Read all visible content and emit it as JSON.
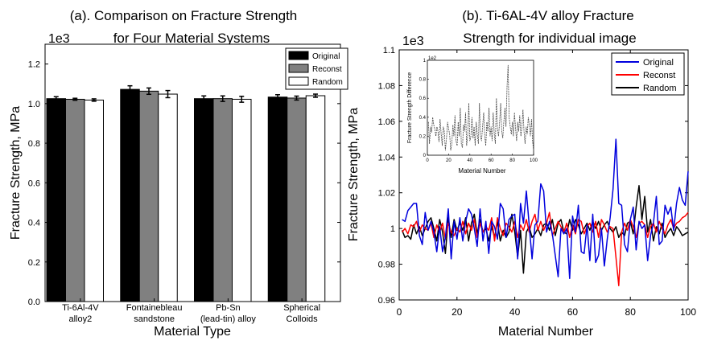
{
  "chart_data": [
    {
      "type": "bar",
      "title": "(a). Comparison  on Fracture Strength for Four Material Systems",
      "title_lines": [
        "(a). Comparison  on Fracture Strength",
        "for Four Material Systems"
      ],
      "scale_label": "1e3",
      "xlabel": "Material Type",
      "ylabel": "Fracture Strength, MPa",
      "ylim": [
        0,
        1.3
      ],
      "yticks": [
        0.0,
        0.2,
        0.4,
        0.6,
        0.8,
        1.0,
        1.2
      ],
      "ytick_labels": [
        "0.0",
        "0.2",
        "0.4",
        "0.6",
        "0.8",
        "1.0",
        "1.2"
      ],
      "categories": [
        "Ti-6Al-4V alloy2",
        "Fontainebleau sandstone",
        "Pb-Sn (lead-tin) alloy",
        "Spherical Colloids"
      ],
      "category_lines": [
        [
          "Ti-6Al-4V",
          "alloy2"
        ],
        [
          "Fontainebleau",
          "sandstone"
        ],
        [
          "Pb-Sn",
          "(lead-tin) alloy"
        ],
        [
          "Spherical",
          "Colloids"
        ]
      ],
      "legend_position": "top-right",
      "series": [
        {
          "name": "Original",
          "color": "#000000",
          "values": [
            1.025,
            1.072,
            1.025,
            1.033
          ],
          "errors": [
            0.01,
            0.018,
            0.014,
            0.012
          ]
        },
        {
          "name": "Reconst",
          "color": "#808080",
          "values": [
            1.022,
            1.063,
            1.025,
            1.028
          ],
          "errors": [
            0.005,
            0.016,
            0.014,
            0.01
          ]
        },
        {
          "name": "Random",
          "color": "#ffffff",
          "values": [
            1.018,
            1.048,
            1.022,
            1.04
          ],
          "errors": [
            0.006,
            0.018,
            0.015,
            0.008
          ]
        }
      ]
    },
    {
      "type": "line",
      "title": "(b). Ti-6AL-4V alloy Fracture Strength for individual  image",
      "title_lines": [
        "(b). Ti-6AL-4V alloy Fracture",
        "Strength for individual  image"
      ],
      "scale_label": "1e3",
      "xlabel": "Material Number",
      "ylabel": "Fracture Strength, MPa",
      "xlim": [
        0,
        100
      ],
      "ylim": [
        0.96,
        1.1
      ],
      "xticks": [
        0,
        20,
        40,
        60,
        80,
        100
      ],
      "yticks": [
        0.96,
        0.98,
        1.0,
        1.02,
        1.04,
        1.06,
        1.08,
        1.1
      ],
      "ytick_labels": [
        "0.96",
        "0.98",
        "1",
        "1.02",
        "1.04",
        "1.06",
        "1.08",
        "1.1"
      ],
      "legend_position": "top-right",
      "x": [
        1,
        2,
        3,
        4,
        5,
        6,
        7,
        8,
        9,
        10,
        11,
        12,
        13,
        14,
        15,
        16,
        17,
        18,
        19,
        20,
        21,
        22,
        23,
        24,
        25,
        26,
        27,
        28,
        29,
        30,
        31,
        32,
        33,
        34,
        35,
        36,
        37,
        38,
        39,
        40,
        41,
        42,
        43,
        44,
        45,
        46,
        47,
        48,
        49,
        50,
        51,
        52,
        53,
        54,
        55,
        56,
        57,
        58,
        59,
        60,
        61,
        62,
        63,
        64,
        65,
        66,
        67,
        68,
        69,
        70,
        71,
        72,
        73,
        74,
        75,
        76,
        77,
        78,
        79,
        80,
        81,
        82,
        83,
        84,
        85,
        86,
        87,
        88,
        89,
        90,
        91,
        92,
        93,
        94,
        95,
        96,
        97,
        98,
        99,
        100
      ],
      "series": [
        {
          "name": "Original",
          "color": "#0000dd",
          "values": [
            1.005,
            1.004,
            1.01,
            1.012,
            1.014,
            1.014,
            0.996,
            0.991,
            1.009,
            0.999,
            1.004,
            0.998,
            0.987,
            1.001,
            0.987,
            0.995,
            1.011,
            0.983,
            1.004,
            0.994,
            1.006,
            0.993,
            1.004,
            1.011,
            1.008,
            1.0,
            0.99,
            1.011,
            0.993,
            1.004,
            0.986,
            1.004,
            1.001,
            0.994,
            1.014,
            1.011,
            0.995,
            1.005,
            1.007,
            1.008,
            0.983,
            1.014,
            1.003,
            1.021,
            1.002,
            0.983,
            1.002,
            1.004,
            1.025,
            1.021,
            0.998,
            1.004,
            0.997,
            0.985,
            0.973,
            1.0,
            0.997,
            1.0,
            0.972,
            1.007,
            0.998,
            1.013,
            0.987,
            0.986,
            1.002,
            0.982,
            1.008,
            0.981,
            0.985,
            1.0,
            0.979,
            0.994,
            1.006,
            1.022,
            1.05,
            1.014,
            1.013,
            0.991,
            0.987,
            1.005,
            1.012,
            0.988,
            1.004,
            1.0,
            1.002,
            0.982,
            0.996,
            1.003,
            1.018,
            0.991,
            0.993,
            1.013,
            1.008,
            1.012,
            0.999,
            1.014,
            1.023,
            1.016,
            1.013,
            1.032
          ]
        },
        {
          "name": "Reconst",
          "color": "#ff0000",
          "values": [
            0.998,
            1.0,
            0.997,
            1.002,
            1.001,
            1.004,
            0.998,
            1.002,
            1.0,
            0.999,
            1.003,
            0.995,
            1.002,
            0.998,
            1.003,
            0.994,
            1.003,
            0.998,
            0.996,
            1.0,
            0.998,
            1.004,
            0.997,
            1.003,
            0.999,
            1.005,
            0.995,
            1.003,
            0.998,
            1.001,
            0.999,
            1.006,
            0.993,
            1.006,
            1.0,
            0.996,
            1.003,
            1.001,
            0.998,
            1.004,
            0.995,
            1.002,
            0.999,
            1.005,
            0.998,
            1.004,
            1.008,
            0.999,
            1.004,
            0.999,
            1.003,
            1.009,
            0.996,
            1.0,
            1.004,
            1.001,
            0.998,
            1.003,
            0.995,
            1.002,
            0.997,
            1.005,
            1.004,
            0.997,
            1.001,
            1.003,
            0.998,
            1.004,
            0.995,
            1.005,
            1.002,
            0.998,
            1.001,
            1.0,
            0.984,
            0.968,
            0.998,
            1.003,
            0.999,
            1.005,
            1.001,
            0.995,
            1.003,
            1.004,
            1.002,
            0.995,
            1.001,
            1.003,
            0.998,
            1.004,
            1.0,
            0.997,
            1.002,
            1.005,
            1.0,
            1.003,
            1.004,
            1.006,
            1.007,
            1.009
          ]
        },
        {
          "name": "Random",
          "color": "#000000",
          "values": [
            0.999,
            0.995,
            0.996,
            0.994,
            1.002,
            0.997,
            1.001,
            0.996,
            1.0,
            1.004,
            1.006,
            1.0,
            0.993,
            1.005,
            0.998,
            0.986,
            1.006,
            0.995,
            1.005,
            0.999,
            1.003,
            0.999,
            1.006,
            0.993,
            1.003,
            1.008,
            0.997,
            1.005,
            0.998,
            1.0,
            0.993,
            1.001,
            0.995,
            1.004,
            0.993,
            0.999,
            0.995,
            0.998,
            1.008,
            0.998,
            0.984,
            0.999,
            0.975,
            0.998,
            1.001,
            0.995,
            0.997,
            1.0,
            0.996,
            1.002,
            1.003,
            0.999,
            1.005,
            0.996,
            1.003,
            1.005,
            0.998,
            0.997,
            1.005,
            0.999,
            1.005,
            1.002,
            0.997,
            1.0,
            1.003,
            0.999,
            1.004,
            1.0,
            1.004,
            0.999,
            1.002,
            1.004,
            1.0,
            0.998,
            1.001,
            0.995,
            0.998,
            0.996,
            1.003,
            1.004,
            0.997,
            1.012,
            1.024,
            1.005,
            1.018,
            0.998,
            1.005,
            0.993,
            1.001,
            0.997,
            1.003,
            0.995,
            0.998,
            1.0,
            0.996,
            1.001,
            0.999,
            0.996,
            0.997,
            0.998
          ]
        }
      ],
      "inset": {
        "type": "line",
        "scale_label": "1e2",
        "xlabel": "Material Number",
        "ylabel": "Fracture Strength Difference",
        "xlim": [
          0,
          100
        ],
        "ylim": [
          0,
          1
        ],
        "xticks": [
          0,
          20,
          40,
          60,
          80,
          100
        ],
        "yticks": [
          0,
          0.2,
          0.4,
          0.6,
          0.8,
          1
        ],
        "ytick_labels": [
          "0",
          "0.2",
          "0.4",
          "0.6",
          "0.8",
          "1"
        ],
        "color": "#444444",
        "values": [
          0.35,
          0.12,
          0.3,
          0.24,
          0.4,
          0.32,
          0.28,
          0.2,
          0.3,
          0.25,
          0.14,
          0.38,
          0.22,
          0.1,
          0.3,
          0.25,
          0.05,
          0.18,
          0.35,
          0.28,
          0.22,
          0.05,
          0.12,
          0.32,
          0.2,
          0.42,
          0.15,
          0.1,
          0.35,
          0.2,
          0.5,
          0.12,
          0.08,
          0.32,
          0.25,
          0.45,
          0.1,
          0.22,
          0.55,
          0.15,
          0.2,
          0.4,
          0.18,
          0.3,
          0.1,
          0.35,
          0.22,
          0.12,
          0.55,
          0.2,
          0.15,
          0.3,
          0.45,
          0.2,
          0.1,
          0.35,
          0.25,
          0.5,
          0.2,
          0.3,
          0.15,
          0.45,
          0.22,
          0.12,
          0.6,
          0.28,
          0.2,
          0.35,
          0.55,
          0.25,
          0.18,
          0.35,
          0.5,
          0.3,
          0.72,
          0.95,
          0.4,
          0.3,
          0.22,
          0.35,
          0.2,
          0.45,
          0.28,
          0.15,
          0.35,
          0.25,
          0.42,
          0.2,
          0.3,
          0.48,
          0.25,
          0.12,
          0.3,
          0.22,
          0.4,
          0.32,
          0.2,
          0.38,
          0.15,
          0.05
        ]
      }
    }
  ]
}
